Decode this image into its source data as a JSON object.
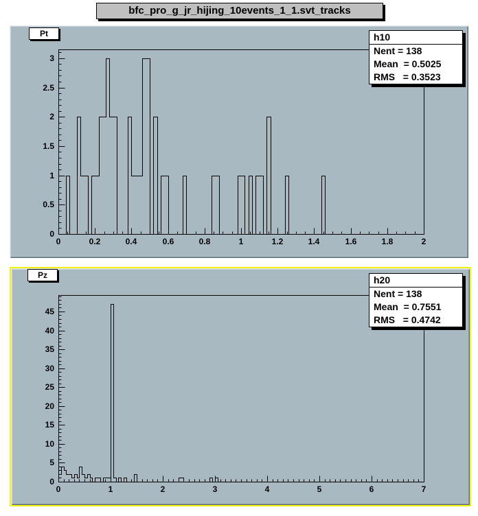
{
  "canvas": {
    "title": "bfc_pro_g_jr_hijing_10events_1_1.svt_tracks"
  },
  "colors": {
    "canvas_background": "#ffffff",
    "pad_background": "#a9b9c2",
    "title_pave_fill": "#bfbfbf",
    "stat_box_fill": "#ffffff",
    "histogram_line": "#000000",
    "selected_pad_border": "#f2f20c"
  },
  "pads": [
    {
      "id": "pt",
      "label": "Pt",
      "selected": false,
      "stats": {
        "name": "h10",
        "rows": [
          "Nent = 138",
          "Mean  = 0.5025",
          "RMS   = 0.3523"
        ]
      }
    },
    {
      "id": "pz",
      "label": "Pz",
      "selected": true,
      "stats": {
        "name": "h20",
        "rows": [
          "Nent = 138",
          "Mean  = 0.7551",
          "RMS   = 0.4742"
        ]
      }
    }
  ],
  "chart_data": [
    {
      "type": "bar",
      "style": "histogram-outline",
      "title": "Pt",
      "hist_name": "h10",
      "entries": 138,
      "mean": 0.5025,
      "rms": 0.3523,
      "xlim": [
        0,
        2
      ],
      "ylim": [
        0,
        3.15
      ],
      "bin_width": 0.02,
      "bins": [
        [
          0.04,
          1
        ],
        [
          0.1,
          2
        ],
        [
          0.12,
          1
        ],
        [
          0.14,
          1
        ],
        [
          0.18,
          1
        ],
        [
          0.2,
          1
        ],
        [
          0.22,
          2
        ],
        [
          0.24,
          2
        ],
        [
          0.26,
          3
        ],
        [
          0.28,
          2
        ],
        [
          0.3,
          2
        ],
        [
          0.38,
          2
        ],
        [
          0.4,
          1
        ],
        [
          0.42,
          1
        ],
        [
          0.44,
          1
        ],
        [
          0.46,
          3
        ],
        [
          0.48,
          3
        ],
        [
          0.52,
          2
        ],
        [
          0.56,
          1
        ],
        [
          0.58,
          1
        ],
        [
          0.68,
          1
        ],
        [
          0.84,
          1
        ],
        [
          0.86,
          1
        ],
        [
          0.98,
          1
        ],
        [
          1.0,
          1
        ],
        [
          1.04,
          1
        ],
        [
          1.08,
          1
        ],
        [
          1.1,
          1
        ],
        [
          1.14,
          2
        ],
        [
          1.24,
          1
        ],
        [
          1.44,
          1
        ]
      ],
      "x_ticks": {
        "minor": 0.05,
        "labels": [
          {
            "v": 0,
            "t": "0"
          },
          {
            "v": 0.2,
            "t": "0.2"
          },
          {
            "v": 0.4,
            "t": "0.4"
          },
          {
            "v": 0.6,
            "t": "0.6"
          },
          {
            "v": 0.8,
            "t": "0.8"
          },
          {
            "v": 1,
            "t": "1"
          },
          {
            "v": 1.2,
            "t": "1.2"
          },
          {
            "v": 1.4,
            "t": "1.4"
          },
          {
            "v": 1.6,
            "t": "1.6"
          },
          {
            "v": 1.8,
            "t": "1.8"
          },
          {
            "v": 2,
            "t": "2"
          }
        ]
      },
      "y_ticks": {
        "minor": 0.1,
        "labels": [
          {
            "v": 0,
            "t": "0"
          },
          {
            "v": 0.5,
            "t": "0.5"
          },
          {
            "v": 1,
            "t": "1"
          },
          {
            "v": 1.5,
            "t": "1.5"
          },
          {
            "v": 2,
            "t": "2"
          },
          {
            "v": 2.5,
            "t": "2.5"
          },
          {
            "v": 3,
            "t": "3"
          }
        ]
      },
      "grid": false,
      "xlabel": "",
      "ylabel": ""
    },
    {
      "type": "bar",
      "style": "histogram-outline",
      "title": "Pz",
      "hist_name": "h20",
      "entries": 138,
      "mean": 0.7551,
      "rms": 0.4742,
      "xlim": [
        0,
        7
      ],
      "ylim": [
        0,
        49.35
      ],
      "bin_width": 0.05,
      "bins": [
        [
          0.0,
          2
        ],
        [
          0.05,
          4
        ],
        [
          0.1,
          3
        ],
        [
          0.15,
          2
        ],
        [
          0.2,
          2
        ],
        [
          0.25,
          1
        ],
        [
          0.3,
          2
        ],
        [
          0.35,
          1
        ],
        [
          0.4,
          4
        ],
        [
          0.45,
          2
        ],
        [
          0.5,
          1
        ],
        [
          0.55,
          2
        ],
        [
          0.6,
          1
        ],
        [
          0.7,
          1
        ],
        [
          0.75,
          1
        ],
        [
          0.85,
          1
        ],
        [
          0.9,
          1
        ],
        [
          0.95,
          1
        ],
        [
          1.0,
          47
        ],
        [
          1.05,
          1
        ],
        [
          1.15,
          1
        ],
        [
          1.25,
          1
        ],
        [
          1.45,
          2
        ],
        [
          2.3,
          1
        ],
        [
          2.35,
          1
        ],
        [
          2.9,
          1
        ],
        [
          3.0,
          1
        ]
      ],
      "x_ticks": {
        "minor": 0.1,
        "labels": [
          {
            "v": 0,
            "t": "0"
          },
          {
            "v": 1,
            "t": "1"
          },
          {
            "v": 2,
            "t": "2"
          },
          {
            "v": 3,
            "t": "3"
          },
          {
            "v": 4,
            "t": "4"
          },
          {
            "v": 5,
            "t": "5"
          },
          {
            "v": 6,
            "t": "6"
          },
          {
            "v": 7,
            "t": "7"
          }
        ]
      },
      "y_ticks": {
        "minor": 1,
        "labels": [
          {
            "v": 0,
            "t": "0"
          },
          {
            "v": 5,
            "t": "5"
          },
          {
            "v": 10,
            "t": "10"
          },
          {
            "v": 15,
            "t": "15"
          },
          {
            "v": 20,
            "t": "20"
          },
          {
            "v": 25,
            "t": "25"
          },
          {
            "v": 30,
            "t": "30"
          },
          {
            "v": 35,
            "t": "35"
          },
          {
            "v": 40,
            "t": "40"
          },
          {
            "v": 45,
            "t": "45"
          }
        ]
      },
      "grid": false,
      "xlabel": "",
      "ylabel": ""
    }
  ]
}
